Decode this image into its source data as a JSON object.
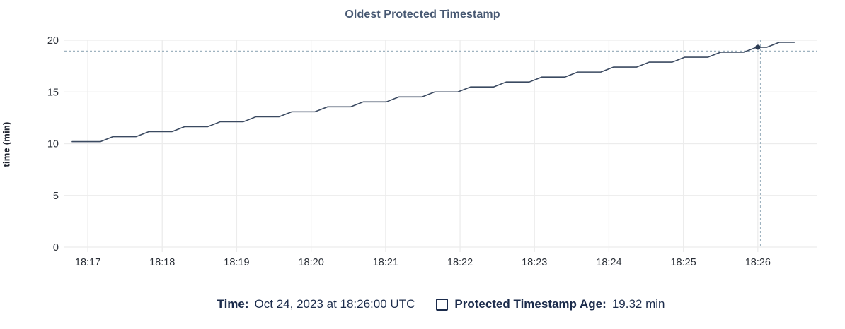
{
  "title": "Oldest Protected Timestamp",
  "y_axis_title": "time (min)",
  "footer": {
    "time_label": "Time:",
    "time_value": "Oct 24, 2023 at 18:26:00 UTC",
    "metric_label": "Protected Timestamp Age:",
    "metric_value": "19.32 min",
    "swatch_icon": "square-outline-icon"
  },
  "colors": {
    "title": "#475872",
    "title_underline": "#8593ad",
    "navy": "#1b2b4b",
    "series_line": "#3b4a61",
    "point_fill": "#2b3a52",
    "crosshair": "#9fb3c0",
    "grid": "#ececec",
    "axis_label": "#2b3038"
  },
  "chart_data": {
    "type": "line",
    "title": "Oldest Protected Timestamp",
    "xlabel": "",
    "ylabel": "time (min)",
    "x_tick_labels": [
      "18:17",
      "18:18",
      "18:19",
      "18:20",
      "18:21",
      "18:22",
      "18:23",
      "18:24",
      "18:25",
      "18:26"
    ],
    "x_tick_positions": [
      0,
      1,
      2,
      3,
      4,
      5,
      6,
      7,
      8,
      9
    ],
    "y_ticks": [
      0,
      5,
      10,
      15,
      20
    ],
    "xlim": [
      -0.314,
      9.8
    ],
    "ylim": [
      0,
      20
    ],
    "grid": true,
    "x_unit": "minutes after 18:17 UTC",
    "series": [
      {
        "name": "Protected Timestamp Age",
        "unit": "min",
        "points": [
          [
            -0.21,
            10.2
          ],
          [
            0.17,
            10.2
          ],
          [
            0.34,
            10.68
          ],
          [
            0.65,
            10.68
          ],
          [
            0.82,
            11.16
          ],
          [
            1.13,
            11.16
          ],
          [
            1.3,
            11.64
          ],
          [
            1.61,
            11.64
          ],
          [
            1.78,
            12.12
          ],
          [
            2.09,
            12.12
          ],
          [
            2.26,
            12.6
          ],
          [
            2.57,
            12.6
          ],
          [
            2.74,
            13.08
          ],
          [
            3.05,
            13.08
          ],
          [
            3.22,
            13.56
          ],
          [
            3.53,
            13.56
          ],
          [
            3.7,
            14.04
          ],
          [
            4.01,
            14.04
          ],
          [
            4.18,
            14.52
          ],
          [
            4.49,
            14.52
          ],
          [
            4.66,
            15.0
          ],
          [
            4.97,
            15.0
          ],
          [
            5.14,
            15.48
          ],
          [
            5.45,
            15.48
          ],
          [
            5.62,
            15.96
          ],
          [
            5.93,
            15.96
          ],
          [
            6.1,
            16.44
          ],
          [
            6.41,
            16.44
          ],
          [
            6.58,
            16.92
          ],
          [
            6.89,
            16.92
          ],
          [
            7.06,
            17.4
          ],
          [
            7.37,
            17.4
          ],
          [
            7.54,
            17.88
          ],
          [
            7.85,
            17.88
          ],
          [
            8.02,
            18.36
          ],
          [
            8.33,
            18.36
          ],
          [
            8.5,
            18.84
          ],
          [
            8.81,
            18.84
          ],
          [
            8.98,
            19.32
          ],
          [
            9.12,
            19.32
          ],
          [
            9.29,
            19.8
          ],
          [
            9.49,
            19.8
          ]
        ]
      }
    ],
    "hover": {
      "point_x": 9.0,
      "point_y": 19.32,
      "crosshair_x": 9.035,
      "crosshair_y": 18.95,
      "time_label": "18:26:00",
      "value_label": "19.32 min"
    }
  }
}
